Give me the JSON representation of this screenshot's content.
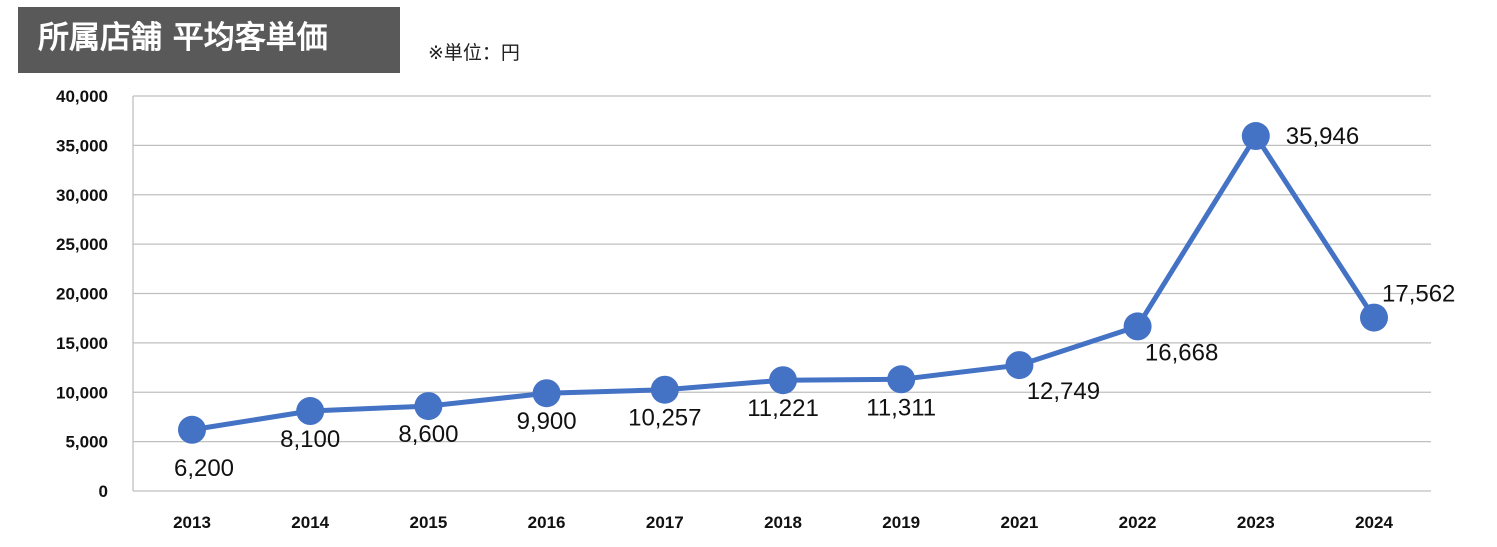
{
  "header": {
    "title": "所属店舗 平均客単価",
    "unit_note": "※単位：円"
  },
  "colors": {
    "title_bg": "#595959",
    "line": "#4472C4",
    "grid": "#BFBFBF"
  },
  "chart_data": {
    "type": "line",
    "title": "所属店舗 平均客単価",
    "xlabel": "",
    "ylabel": "",
    "categories": [
      "2013",
      "2014",
      "2015",
      "2016",
      "2017",
      "2018",
      "2019",
      "2021",
      "2022",
      "2023",
      "2024"
    ],
    "series": [
      {
        "values": [
          6200,
          8100,
          8600,
          9900,
          10257,
          11221,
          11311,
          12749,
          16668,
          35946,
          17562
        ]
      }
    ],
    "data_labels": [
      "6,200",
      "8,100",
      "8,600",
      "9,900",
      "10,257",
      "11,221",
      "11,311",
      "12,749",
      "16,668",
      "35,946",
      "17,562"
    ],
    "ylim": [
      0,
      40000
    ],
    "yticks": [
      0,
      5000,
      10000,
      15000,
      20000,
      25000,
      30000,
      35000,
      40000
    ],
    "ytick_labels": [
      "0",
      "5,000",
      "10,000",
      "15,000",
      "20,000",
      "25,000",
      "30,000",
      "35,000",
      "40,000"
    ],
    "grid": true,
    "legend": "none",
    "marker": "circle"
  }
}
